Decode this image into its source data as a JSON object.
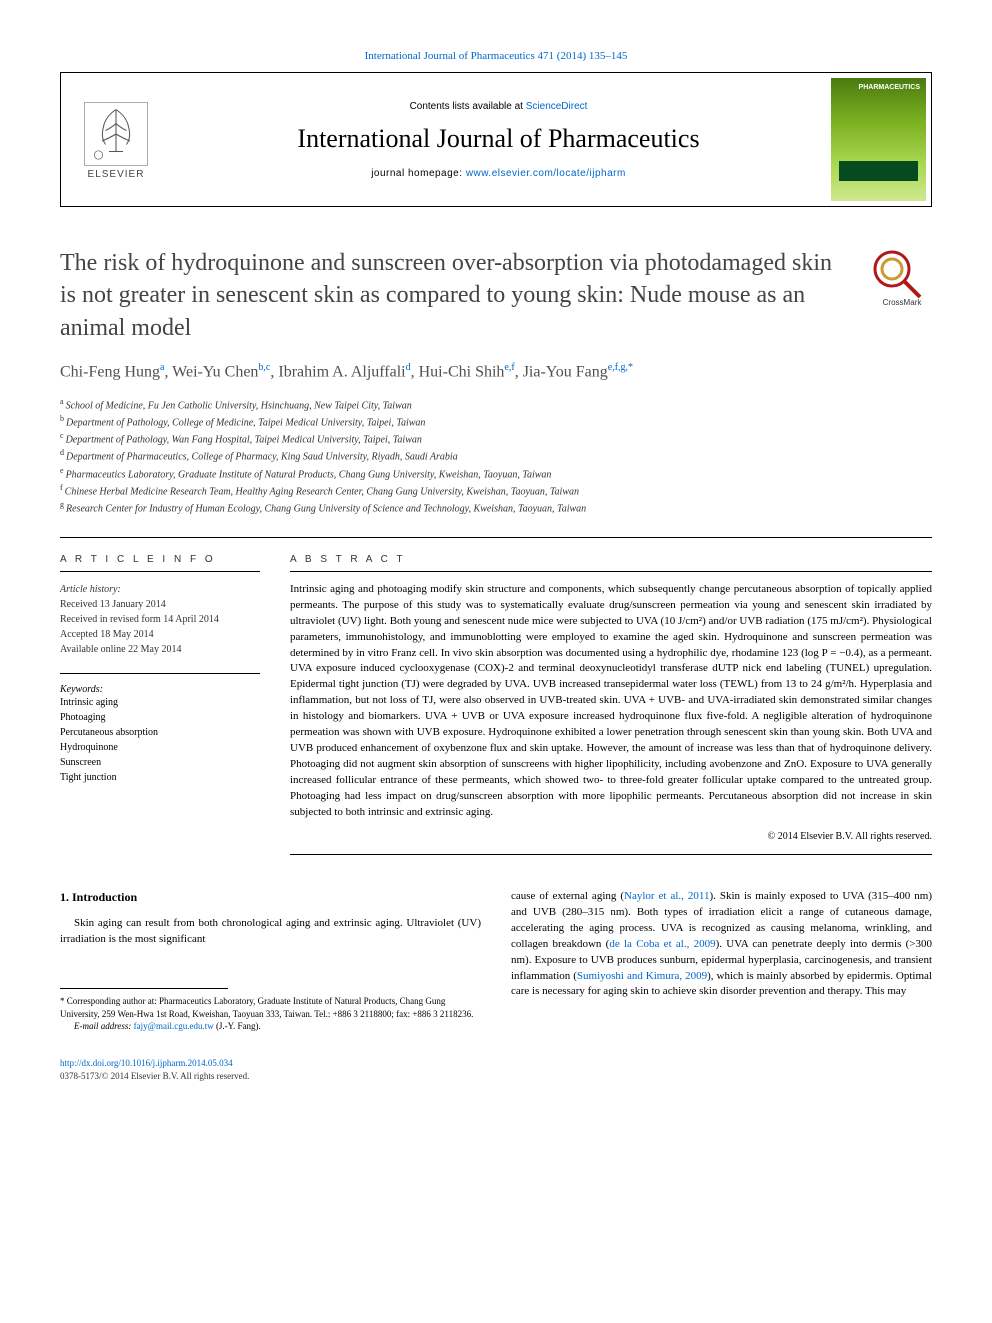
{
  "top_link_text": "International Journal of Pharmaceutics 471 (2014) 135–145",
  "header": {
    "contents_prefix": "Contents lists available at ",
    "contents_link": "ScienceDirect",
    "journal_title": "International Journal of Pharmaceutics",
    "homepage_prefix": "journal homepage: ",
    "homepage_link": "www.elsevier.com/locate/ijpharm",
    "elsevier_label": "ELSEVIER",
    "cover_label": "PHARMACEUTICS"
  },
  "article": {
    "title": "The risk of hydroquinone and sunscreen over-absorption via photodamaged skin is not greater in senescent skin as compared to young skin: Nude mouse as an animal model",
    "crossmark_label": "CrossMark",
    "authors_html": "Chi-Feng Hung|a|, Wei-Yu Chen|b,c|, Ibrahim A. Aljuffali|d|, Hui-Chi Shih|e,f|, Jia-You Fang|e,f,g,*|",
    "affiliations": [
      {
        "sup": "a",
        "text": "School of Medicine, Fu Jen Catholic University, Hsinchuang, New Taipei City, Taiwan"
      },
      {
        "sup": "b",
        "text": "Department of Pathology, College of Medicine, Taipei Medical University, Taipei, Taiwan"
      },
      {
        "sup": "c",
        "text": "Department of Pathology, Wan Fang Hospital, Taipei Medical University, Taipei, Taiwan"
      },
      {
        "sup": "d",
        "text": "Department of Pharmaceutics, College of Pharmacy, King Saud University, Riyadh, Saudi Arabia"
      },
      {
        "sup": "e",
        "text": "Pharmaceutics Laboratory, Graduate Institute of Natural Products, Chang Gung University, Kweishan, Taoyuan, Taiwan"
      },
      {
        "sup": "f",
        "text": "Chinese Herbal Medicine Research Team, Healthy Aging Research Center, Chang Gung University, Kweishan, Taoyuan, Taiwan"
      },
      {
        "sup": "g",
        "text": "Research Center for Industry of Human Ecology, Chang Gung University of Science and Technology, Kweishan, Taoyuan, Taiwan"
      }
    ]
  },
  "info": {
    "header": "A R T I C L E   I N F O",
    "history_label": "Article history:",
    "received": "Received 13 January 2014",
    "revised": "Received in revised form 14 April 2014",
    "accepted": "Accepted 18 May 2014",
    "online": "Available online 22 May 2014",
    "keywords_label": "Keywords:",
    "keywords": [
      "Intrinsic aging",
      "Photoaging",
      "Percutaneous absorption",
      "Hydroquinone",
      "Sunscreen",
      "Tight junction"
    ]
  },
  "abstract": {
    "header": "A B S T R A C T",
    "text": "Intrinsic aging and photoaging modify skin structure and components, which subsequently change percutaneous absorption of topically applied permeants. The purpose of this study was to systematically evaluate drug/sunscreen permeation via young and senescent skin irradiated by ultraviolet (UV) light. Both young and senescent nude mice were subjected to UVA (10 J/cm²) and/or UVB radiation (175 mJ/cm²). Physiological parameters, immunohistology, and immunoblotting were employed to examine the aged skin. Hydroquinone and sunscreen permeation was determined by in vitro Franz cell. In vivo skin absorption was documented using a hydrophilic dye, rhodamine 123 (log P = −0.4), as a permeant. UVA exposure induced cyclooxygenase (COX)-2 and terminal deoxynucleotidyl transferase dUTP nick end labeling (TUNEL) upregulation. Epidermal tight junction (TJ) were degraded by UVA. UVB increased transepidermal water loss (TEWL) from 13 to 24 g/m²/h. Hyperplasia and inflammation, but not loss of TJ, were also observed in UVB-treated skin. UVA + UVB- and UVA-irradiated skin demonstrated similar changes in histology and biomarkers. UVA + UVB or UVA exposure increased hydroquinone flux five-fold. A negligible alteration of hydroquinone permeation was shown with UVB exposure. Hydroquinone exhibited a lower penetration through senescent skin than young skin. Both UVA and UVB produced enhancement of oxybenzone flux and skin uptake. However, the amount of increase was less than that of hydroquinone delivery. Photoaging did not augment skin absorption of sunscreens with higher lipophilicity, including avobenzone and ZnO. Exposure to UVA generally increased follicular entrance of these permeants, which showed two- to three-fold greater follicular uptake compared to the untreated group. Photoaging had less impact on drug/sunscreen absorption with more lipophilic permeants. Percutaneous absorption did not increase in skin subjected to both intrinsic and extrinsic aging.",
    "copyright": "© 2014 Elsevier B.V. All rights reserved."
  },
  "body": {
    "section_heading": "1. Introduction",
    "col1_p1": "Skin aging can result from both chronological aging and extrinsic aging. Ultraviolet (UV) irradiation is the most significant",
    "footnote_corresponding": "* Corresponding author at: Pharmaceutics Laboratory, Graduate Institute of Natural Products, Chang Gung University, 259 Wen-Hwa 1st Road, Kweishan, Taoyuan 333, Taiwan. Tel.: +886 3 2118800; fax: +886 3 2118236.",
    "footnote_email_label": "E-mail address: ",
    "footnote_email": "fajy@mail.cgu.edu.tw",
    "footnote_email_suffix": " (J.-Y. Fang).",
    "col2_p1_pre": "cause of external aging (",
    "col2_cite1": "Naylor et al., 2011",
    "col2_p1_mid1": "). Skin is mainly exposed to UVA (315–400 nm) and UVB (280–315 nm). Both types of irradiation elicit a range of cutaneous damage, accelerating the aging process. UVA is recognized as causing melanoma, wrinkling, and collagen breakdown (",
    "col2_cite2": "de la Coba et al., 2009",
    "col2_p1_mid2": "). UVA can penetrate deeply into dermis (>300 nm). Exposure to UVB produces sunburn, epidermal hyperplasia, carcinogenesis, and transient inflammation (",
    "col2_cite3": "Sumiyoshi and Kimura, 2009",
    "col2_p1_end": "), which is mainly absorbed by epidermis. Optimal care is necessary for aging skin to achieve skin disorder prevention and therapy. This may"
  },
  "footer": {
    "doi": "http://dx.doi.org/10.1016/j.ijpharm.2014.05.034",
    "copyright_line": "0378-5173/© 2014 Elsevier B.V. All rights reserved."
  },
  "colors": {
    "link": "#0066cc",
    "text": "#000000",
    "muted": "#505050",
    "cover_gradient_top": "#4a7a10",
    "cover_gradient_bottom": "#d0e890"
  }
}
